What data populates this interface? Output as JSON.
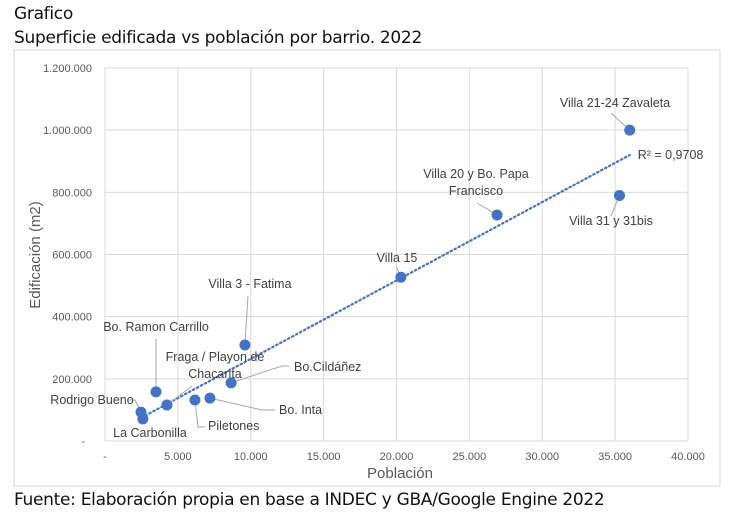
{
  "header": {
    "title": "Grafico",
    "subtitle": "Superficie edificada vs población por barrio. 2022"
  },
  "footer": {
    "source": "Fuente: Elaboración propia en base a INDEC y GBA/Google Engine 2022"
  },
  "chart_data": {
    "type": "scatter",
    "xlabel": "Población",
    "ylabel": "Edificación (m2)",
    "xlim": [
      0,
      40000
    ],
    "ylim": [
      0,
      1200000
    ],
    "x_ticks": [
      "-",
      "5.000",
      "10.000",
      "15.000",
      "20.000",
      "25.000",
      "30.000",
      "35.000",
      "40.000"
    ],
    "y_ticks": [
      "-",
      "200.000",
      "400.000",
      "600.000",
      "800.000",
      "1.000.000",
      "1.200.000"
    ],
    "grid": true,
    "marker_color": "#4472C4",
    "points": [
      {
        "label": "Villa 21-24 Zavaleta",
        "x": 36000,
        "y": 1000000
      },
      {
        "label": "Villa 31 y 31bis",
        "x": 35300,
        "y": 790000
      },
      {
        "label": "Villa 20 y Bo. Papa Francisco",
        "x": 26900,
        "y": 727000
      },
      {
        "label": "Villa 15",
        "x": 20300,
        "y": 527000
      },
      {
        "label": "Villa 3 - Fatima",
        "x": 9600,
        "y": 309000
      },
      {
        "label": "Bo.Cildáñez",
        "x": 8650,
        "y": 187000
      },
      {
        "label": "Bo. Inta",
        "x": 7200,
        "y": 138000
      },
      {
        "label": "Piletones",
        "x": 6170,
        "y": 132000
      },
      {
        "label": "Fraga / Playon de Chacarita",
        "x": 4250,
        "y": 116000
      },
      {
        "label": "Bo. Ramon Carrillo",
        "x": 3500,
        "y": 158000
      },
      {
        "label": "Rodrigo Bueno",
        "x": 2470,
        "y": 93000
      },
      {
        "label": "La Carbonilla",
        "x": 2600,
        "y": 71000
      }
    ],
    "trendline": {
      "type": "linear",
      "style": "dotted",
      "color": "#4472C4",
      "x_range": [
        2500,
        36000
      ],
      "y_range": [
        75000,
        920000
      ],
      "r_squared_label": "R² = 0,9708"
    }
  }
}
